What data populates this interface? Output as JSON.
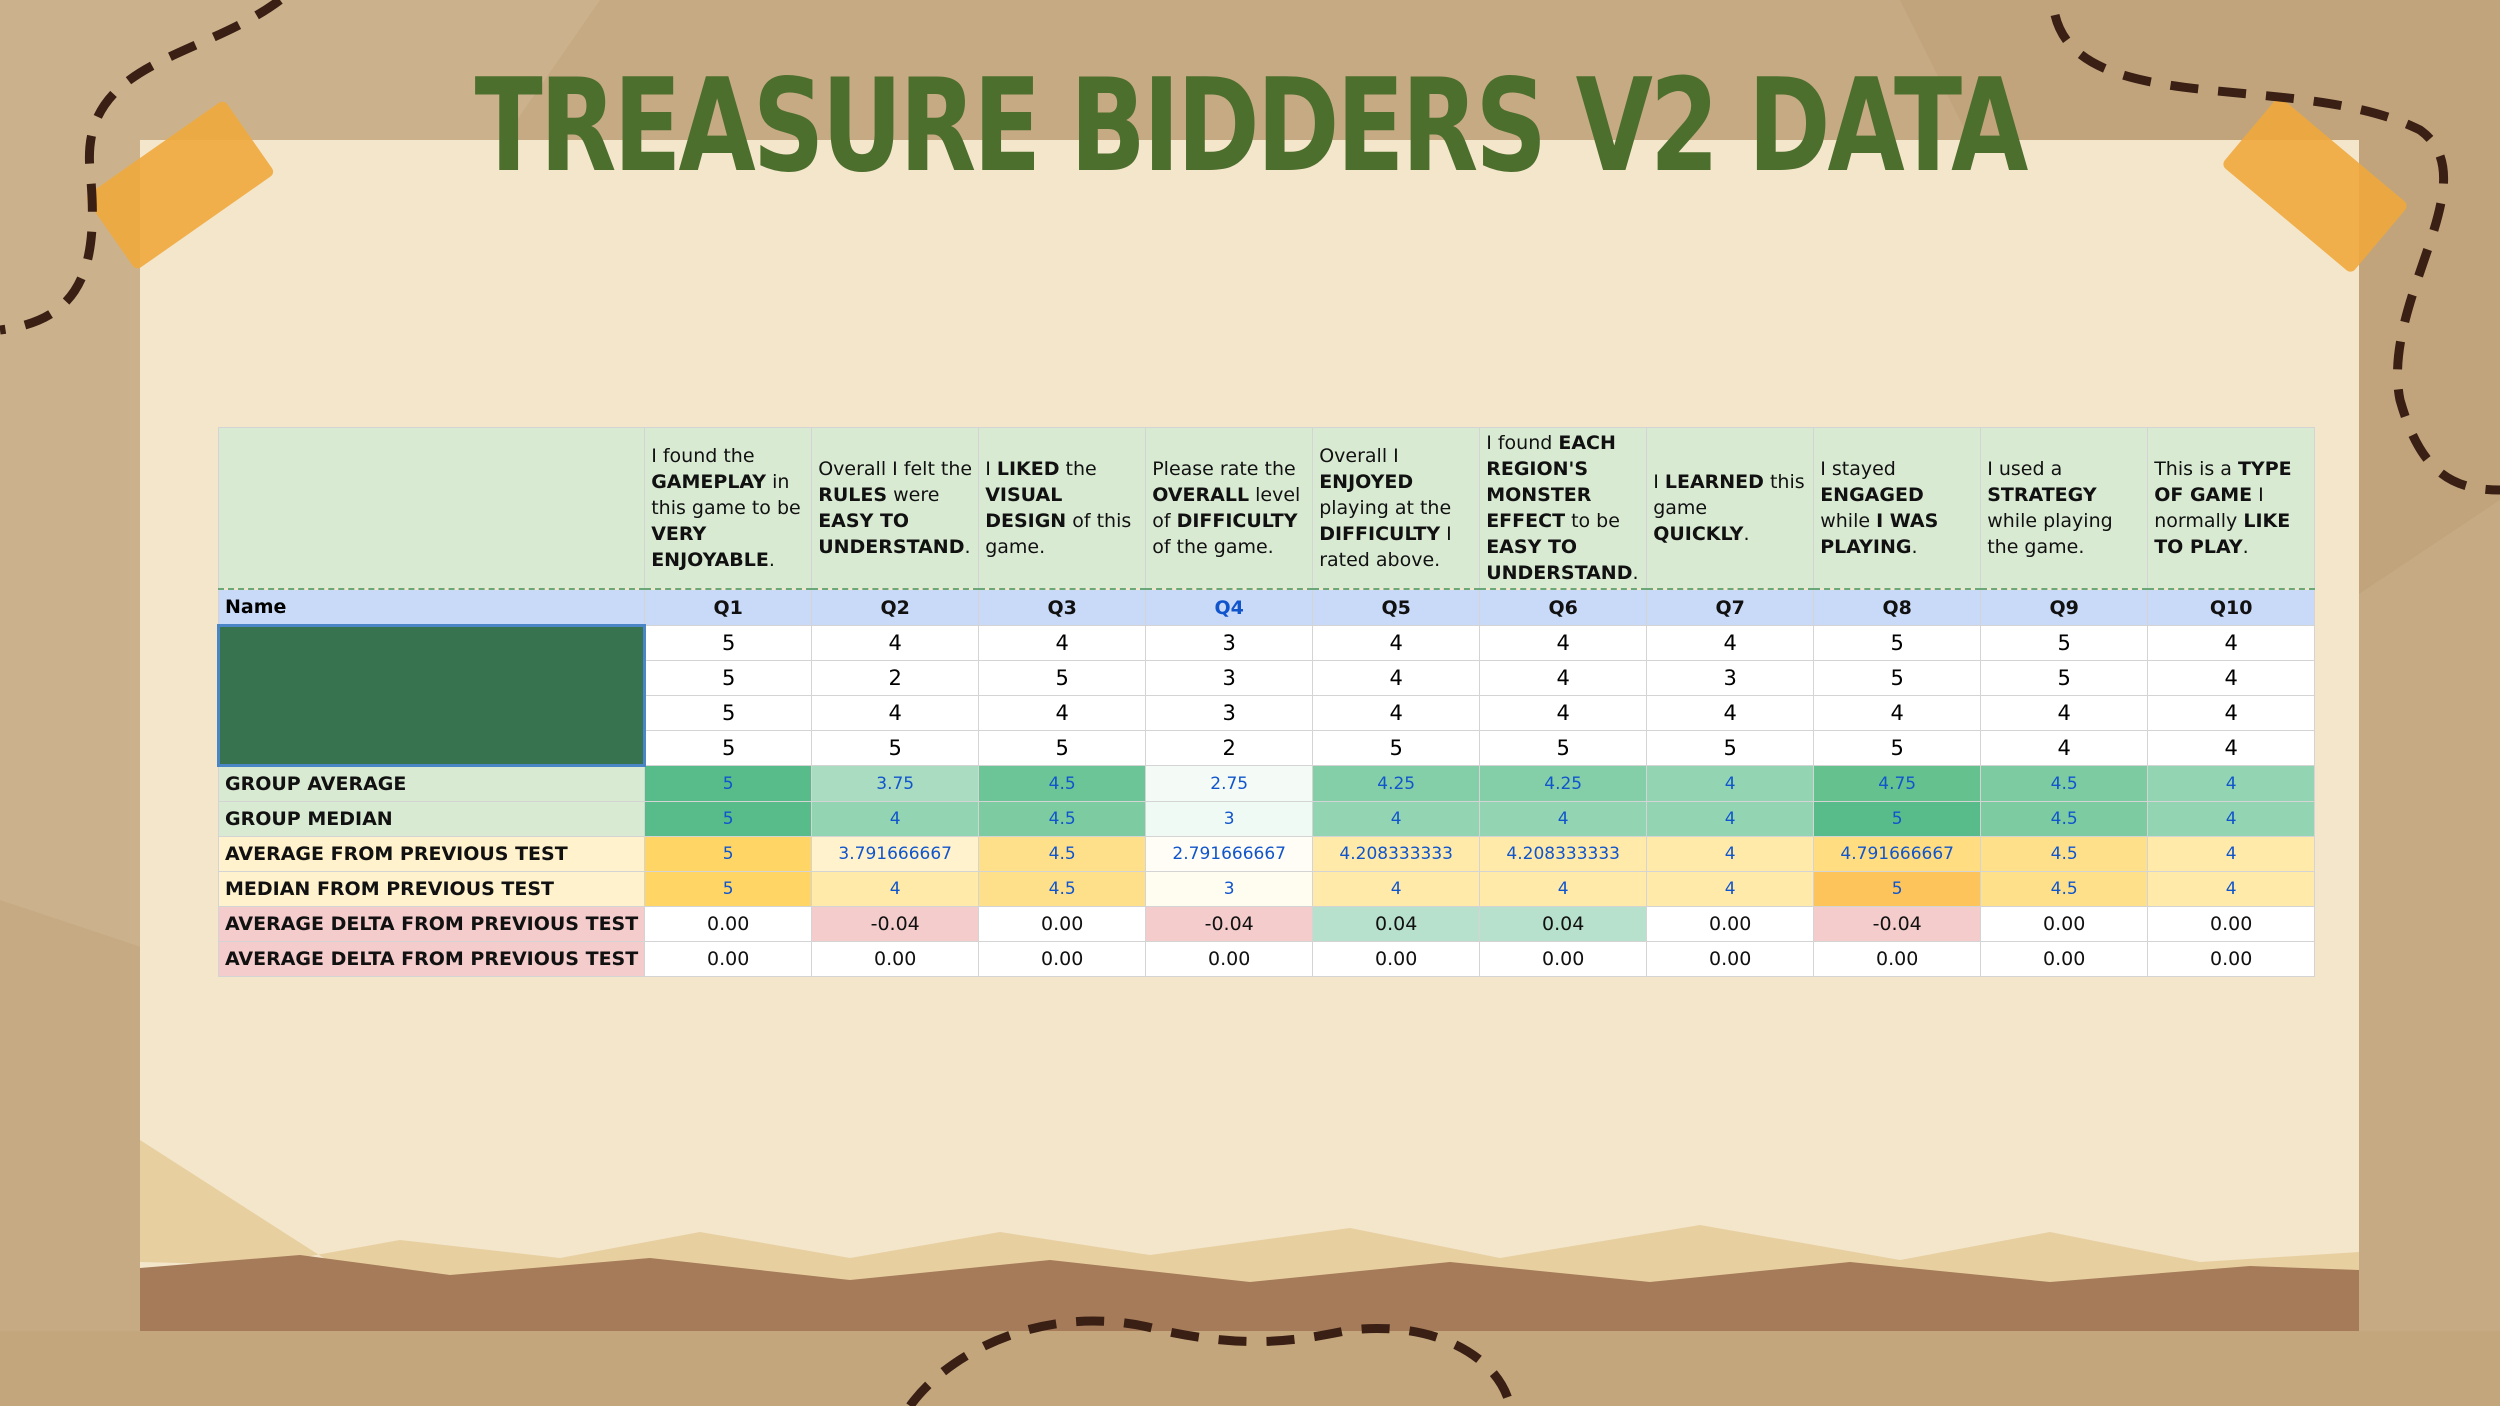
{
  "header": {
    "title": "TREASURE BIDDERS V2 DATA"
  },
  "table": {
    "name_label": "Name",
    "name_color": "#38734f",
    "columns": [
      {
        "label": "Q1",
        "label_color": "#111111",
        "question": [
          {
            "text": "I found the ",
            "bold": false
          },
          {
            "text": "GAMEPLAY",
            "bold": true
          },
          {
            "text": " in this game to be ",
            "bold": false
          },
          {
            "text": "VERY ENJOYABLE",
            "bold": true
          },
          {
            "text": ".",
            "bold": false
          }
        ]
      },
      {
        "label": "Q2",
        "label_color": "#111111",
        "question": [
          {
            "text": "Overall I felt the ",
            "bold": false
          },
          {
            "text": "RULES",
            "bold": true
          },
          {
            "text": " were ",
            "bold": false
          },
          {
            "text": "EASY TO UNDERSTAND",
            "bold": true
          },
          {
            "text": ".",
            "bold": false
          }
        ]
      },
      {
        "label": "Q3",
        "label_color": "#111111",
        "question": [
          {
            "text": "I ",
            "bold": false
          },
          {
            "text": "LIKED",
            "bold": true
          },
          {
            "text": " the ",
            "bold": false
          },
          {
            "text": "VISUAL DESIGN",
            "bold": true
          },
          {
            "text": " of this game.",
            "bold": false
          }
        ]
      },
      {
        "label": "Q4",
        "label_color": "#1155cc",
        "question": [
          {
            "text": "Please rate the ",
            "bold": false
          },
          {
            "text": "OVERALL",
            "bold": true
          },
          {
            "text": " level of ",
            "bold": false
          },
          {
            "text": "DIFFICULTY",
            "bold": true
          },
          {
            "text": " of the game.",
            "bold": false
          }
        ]
      },
      {
        "label": "Q5",
        "label_color": "#111111",
        "question": [
          {
            "text": "Overall I ",
            "bold": false
          },
          {
            "text": "ENJOYED",
            "bold": true
          },
          {
            "text": " playing at the ",
            "bold": false
          },
          {
            "text": "DIFFICULTY",
            "bold": true
          },
          {
            "text": " I rated above.",
            "bold": false
          }
        ]
      },
      {
        "label": "Q6",
        "label_color": "#111111",
        "question": [
          {
            "text": "I found ",
            "bold": false
          },
          {
            "text": "EACH REGION'S MONSTER EFFECT",
            "bold": true
          },
          {
            "text": " to be ",
            "bold": false
          },
          {
            "text": "EASY TO UNDERSTAND",
            "bold": true
          },
          {
            "text": ".",
            "bold": false
          }
        ]
      },
      {
        "label": "Q7",
        "label_color": "#111111",
        "question": [
          {
            "text": "I ",
            "bold": false
          },
          {
            "text": "LEARNED",
            "bold": true
          },
          {
            "text": " this game ",
            "bold": false
          },
          {
            "text": "QUICKLY",
            "bold": true
          },
          {
            "text": ".",
            "bold": false
          }
        ]
      },
      {
        "label": "Q8",
        "label_color": "#111111",
        "question": [
          {
            "text": "I stayed ",
            "bold": false
          },
          {
            "text": "ENGAGED",
            "bold": true
          },
          {
            "text": " while ",
            "bold": false
          },
          {
            "text": "I WAS PLAYING",
            "bold": true
          },
          {
            "text": ".",
            "bold": false
          }
        ]
      },
      {
        "label": "Q9",
        "label_color": "#111111",
        "question": [
          {
            "text": "I used a ",
            "bold": false
          },
          {
            "text": "STRATEGY",
            "bold": true
          },
          {
            "text": " while playing the game.",
            "bold": false
          }
        ]
      },
      {
        "label": "Q10",
        "label_color": "#111111",
        "question": [
          {
            "text": "This is a ",
            "bold": false
          },
          {
            "text": "TYPE OF GAME",
            "bold": true
          },
          {
            "text": " I normally ",
            "bold": false
          },
          {
            "text": "LIKE TO PLAY",
            "bold": true
          },
          {
            "text": ".",
            "bold": false
          }
        ]
      }
    ],
    "rows": [
      [
        "5",
        "4",
        "4",
        "3",
        "4",
        "4",
        "4",
        "5",
        "5",
        "4"
      ],
      [
        "5",
        "2",
        "5",
        "3",
        "4",
        "4",
        "3",
        "5",
        "5",
        "4"
      ],
      [
        "5",
        "4",
        "4",
        "3",
        "4",
        "4",
        "4",
        "4",
        "4",
        "4"
      ],
      [
        "5",
        "5",
        "5",
        "2",
        "5",
        "5",
        "5",
        "5",
        "4",
        "4"
      ]
    ],
    "summary": [
      {
        "label": "GROUP AVERAGE",
        "label_color": "#d9ead3",
        "values": [
          "5",
          "3.75",
          "4.5",
          "2.75",
          "4.25",
          "4.25",
          "4",
          "4.75",
          "4.5",
          "4"
        ],
        "colors": [
          "#57bb8a",
          "#aadcc1",
          "#6cc596",
          "#f4fbf7",
          "#84cfa8",
          "#84cfa8",
          "#93d5b2",
          "#65c28f",
          "#7ccba1",
          "#93d5b2"
        ]
      },
      {
        "label": "GROUP MEDIAN",
        "label_color": "#d9ead3",
        "values": [
          "5",
          "4",
          "4.5",
          "3",
          "4",
          "4",
          "4",
          "5",
          "4.5",
          "4"
        ],
        "colors": [
          "#57bb8a",
          "#93d5b2",
          "#7ccba1",
          "#f0faf4",
          "#93d5b2",
          "#93d5b2",
          "#93d5b2",
          "#57bb8a",
          "#7ccba1",
          "#93d5b2"
        ]
      },
      {
        "label": "AVERAGE FROM PREVIOUS TEST",
        "label_color": "#fff2cc",
        "values": [
          "5",
          "3.791666667",
          "4.5",
          "2.791666667",
          "4.208333333",
          "4.208333333",
          "4",
          "4.791666667",
          "4.5",
          "4"
        ],
        "colors": [
          "#ffd666",
          "#fff2cc",
          "#ffe08a",
          "#fffdf5",
          "#ffeaa9",
          "#ffeaa9",
          "#ffeaa9",
          "#ffdd80",
          "#ffe08a",
          "#ffeaa9"
        ]
      },
      {
        "label": "MEDIAN FROM PREVIOUS TEST",
        "label_color": "#fff2cc",
        "values": [
          "5",
          "4",
          "4.5",
          "3",
          "4",
          "4",
          "4",
          "5",
          "4.5",
          "4"
        ],
        "colors": [
          "#ffd666",
          "#ffeaa9",
          "#ffe08a",
          "#fffdf0",
          "#ffeaa9",
          "#ffeaa9",
          "#ffeaa9",
          "#fcc45a",
          "#ffe08a",
          "#ffeaa9"
        ]
      },
      {
        "label": "AVERAGE DELTA FROM PREVIOUS TEST",
        "label_color": "#f4cccc",
        "values": [
          "0.00",
          "-0.04",
          "0.00",
          "-0.04",
          "0.04",
          "0.04",
          "0.00",
          "-0.04",
          "0.00",
          "0.00"
        ],
        "colors": [
          "#ffffff",
          "#f4cccc",
          "#ffffff",
          "#f4cccc",
          "#b7e1cd",
          "#b7e1cd",
          "#ffffff",
          "#f4cccc",
          "#ffffff",
          "#ffffff"
        ],
        "value_color": "#111111"
      },
      {
        "label": "AVERAGE DELTA FROM PREVIOUS TEST",
        "label_color": "#f4cccc",
        "values": [
          "0.00",
          "0.00",
          "0.00",
          "0.00",
          "0.00",
          "0.00",
          "0.00",
          "0.00",
          "0.00",
          "0.00"
        ],
        "colors": [
          "#ffffff",
          "#ffffff",
          "#ffffff",
          "#ffffff",
          "#ffffff",
          "#ffffff",
          "#ffffff",
          "#ffffff",
          "#ffffff",
          "#ffffff"
        ],
        "value_color": "#111111"
      }
    ]
  }
}
